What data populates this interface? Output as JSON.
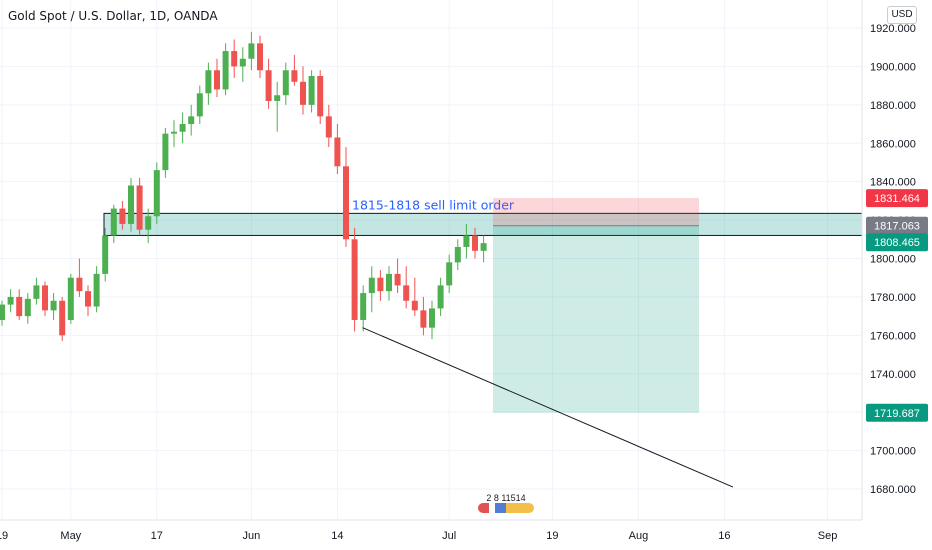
{
  "header": {
    "title": "Gold Spot / U.S. Dollar, 1D, OANDA",
    "currency": "USD"
  },
  "watermark": {
    "text": "2 8 11514"
  },
  "chart_data": {
    "type": "candlestick",
    "title": "Gold Spot / U.S. Dollar, 1D, OANDA",
    "ylim": [
      1664,
      1928
    ],
    "y_ticks": [
      1680,
      1700,
      1720,
      1740,
      1760,
      1780,
      1800,
      1820,
      1840,
      1860,
      1880,
      1900,
      1920
    ],
    "y_tick_labels": [
      "1680.000",
      "1700.000",
      "1720.000",
      "1740.000",
      "1760.000",
      "1780.000",
      "1800.000",
      "1820.000",
      "1840.000",
      "1860.000",
      "1880.000",
      "1900.000",
      "1920.000"
    ],
    "x_ticks": [
      {
        "label": "19",
        "bar": 0
      },
      {
        "label": "May",
        "bar": 8
      },
      {
        "label": "17",
        "bar": 18
      },
      {
        "label": "Jun",
        "bar": 29
      },
      {
        "label": "14",
        "bar": 39
      },
      {
        "label": "Jul",
        "bar": 52
      },
      {
        "label": "19",
        "bar": 64
      },
      {
        "label": "Aug",
        "bar": 74
      },
      {
        "label": "16",
        "bar": 84
      },
      {
        "label": "Sep",
        "bar": 96
      }
    ],
    "candles": [
      [
        1768,
        1778,
        1765,
        1776
      ],
      [
        1776,
        1784,
        1772,
        1780
      ],
      [
        1780,
        1784,
        1768,
        1770
      ],
      [
        1770,
        1782,
        1766,
        1779
      ],
      [
        1779,
        1790,
        1776,
        1786
      ],
      [
        1786,
        1788,
        1770,
        1773
      ],
      [
        1773,
        1782,
        1768,
        1778
      ],
      [
        1778,
        1780,
        1757,
        1760
      ],
      [
        1768,
        1792,
        1766,
        1790
      ],
      [
        1790,
        1800,
        1780,
        1783
      ],
      [
        1783,
        1786,
        1770,
        1775
      ],
      [
        1775,
        1796,
        1772,
        1792
      ],
      [
        1792,
        1816,
        1788,
        1812
      ],
      [
        1812,
        1828,
        1808,
        1826
      ],
      [
        1826,
        1830,
        1815,
        1818
      ],
      [
        1818,
        1842,
        1814,
        1838
      ],
      [
        1838,
        1842,
        1812,
        1815
      ],
      [
        1815,
        1826,
        1808,
        1822
      ],
      [
        1822,
        1850,
        1818,
        1846
      ],
      [
        1846,
        1868,
        1842,
        1865
      ],
      [
        1865,
        1872,
        1858,
        1866
      ],
      [
        1866,
        1876,
        1860,
        1870
      ],
      [
        1870,
        1880,
        1864,
        1874
      ],
      [
        1874,
        1890,
        1870,
        1886
      ],
      [
        1886,
        1902,
        1880,
        1898
      ],
      [
        1898,
        1904,
        1884,
        1888
      ],
      [
        1888,
        1912,
        1885,
        1908
      ],
      [
        1908,
        1914,
        1894,
        1900
      ],
      [
        1900,
        1910,
        1892,
        1904
      ],
      [
        1904,
        1918,
        1898,
        1912
      ],
      [
        1912,
        1916,
        1894,
        1898
      ],
      [
        1898,
        1904,
        1878,
        1882
      ],
      [
        1882,
        1892,
        1866,
        1885
      ],
      [
        1885,
        1902,
        1880,
        1898
      ],
      [
        1898,
        1906,
        1890,
        1892
      ],
      [
        1892,
        1900,
        1875,
        1880
      ],
      [
        1880,
        1898,
        1876,
        1895
      ],
      [
        1895,
        1898,
        1870,
        1874
      ],
      [
        1874,
        1880,
        1858,
        1863
      ],
      [
        1863,
        1870,
        1844,
        1848
      ],
      [
        1848,
        1858,
        1806,
        1810
      ],
      [
        1810,
        1816,
        1762,
        1768
      ],
      [
        1768,
        1786,
        1762,
        1782
      ],
      [
        1782,
        1796,
        1772,
        1790
      ],
      [
        1790,
        1794,
        1778,
        1783
      ],
      [
        1783,
        1796,
        1778,
        1792
      ],
      [
        1792,
        1800,
        1782,
        1786
      ],
      [
        1786,
        1796,
        1774,
        1778
      ],
      [
        1778,
        1790,
        1770,
        1773
      ],
      [
        1773,
        1780,
        1760,
        1764
      ],
      [
        1764,
        1778,
        1758,
        1774
      ],
      [
        1774,
        1790,
        1770,
        1786
      ],
      [
        1786,
        1802,
        1782,
        1798
      ],
      [
        1798,
        1810,
        1794,
        1806
      ],
      [
        1806,
        1818,
        1800,
        1812
      ],
      [
        1812,
        1816,
        1800,
        1804
      ],
      [
        1804,
        1812,
        1798,
        1808
      ]
    ],
    "zone": {
      "label": "1815-1818 sell limit order",
      "top": 1823.5,
      "bottom": 1812
    },
    "position": {
      "entry": 1817.063,
      "stop": 1831.464,
      "target": 1719.687
    },
    "trendline": {
      "from": [
        41,
        1764
      ],
      "to": [
        101,
        1681
      ]
    },
    "price_labels": [
      {
        "value": 1831.464,
        "text": "1831.464",
        "color": "#f23645"
      },
      {
        "value": 1817.063,
        "text": "1817.063",
        "color": "#787b86"
      },
      {
        "value": 1808.465,
        "text": "1808.465",
        "color": "#089981"
      },
      {
        "value": 1719.687,
        "text": "1719.687",
        "color": "#089981"
      }
    ],
    "colors": {
      "up": "#26a69a",
      "up_body": "#4caf50",
      "down": "#ef5350",
      "grid": "#f0f3fa"
    },
    "grid": true
  }
}
